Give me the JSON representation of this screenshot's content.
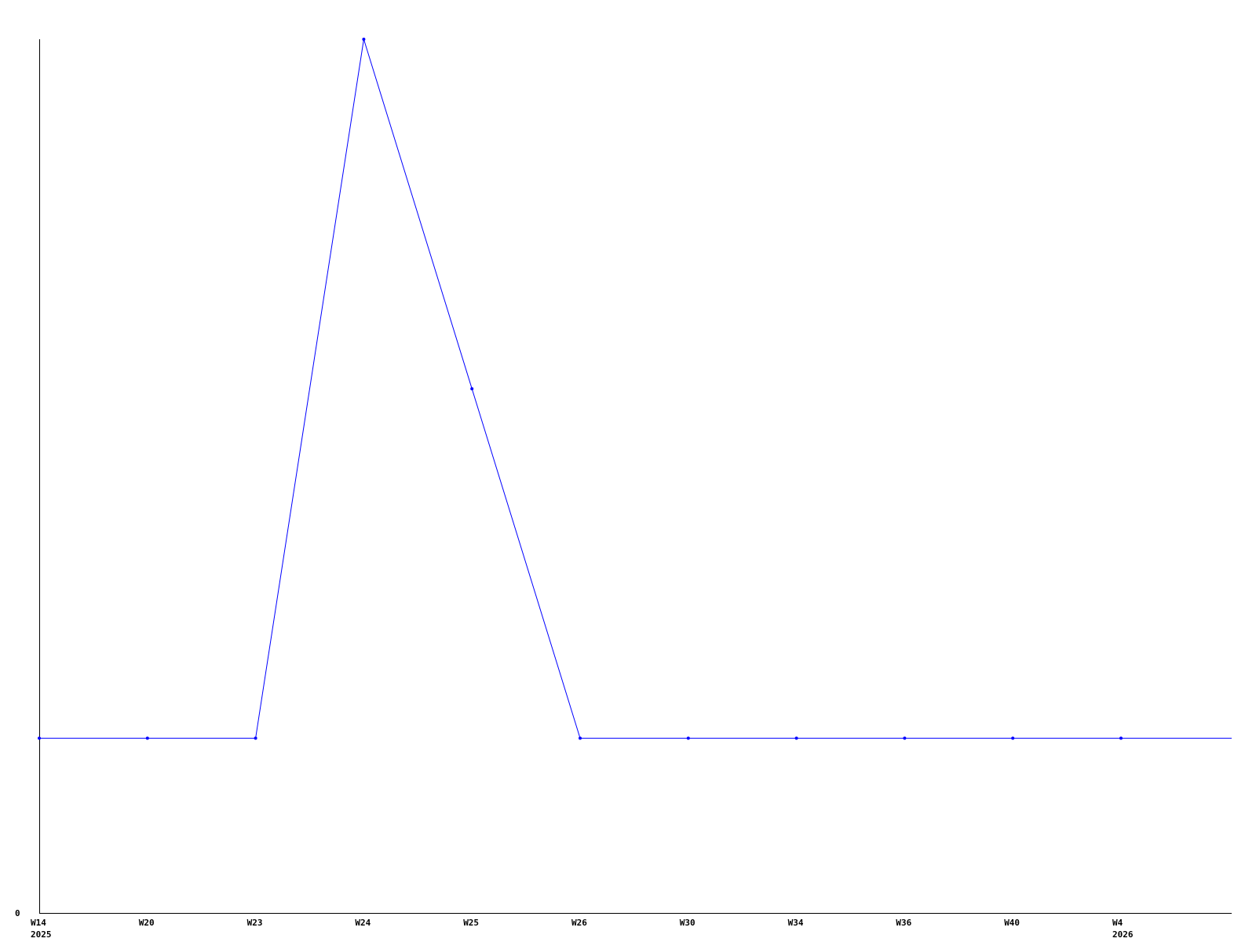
{
  "chart_data": {
    "type": "line",
    "title": "",
    "xlabel": "",
    "ylabel": "",
    "categories": [
      "W14",
      "W20",
      "W23",
      "W24",
      "W25",
      "W26",
      "W30",
      "W34",
      "W36",
      "W40",
      "W4"
    ],
    "year_labels": [
      {
        "category": "W14",
        "label": "2025"
      },
      {
        "category": "W4",
        "label": "2026"
      }
    ],
    "y_tick_labels": [
      "0"
    ],
    "series": [
      {
        "values": [
          1,
          1,
          1,
          5,
          3,
          1,
          1,
          1,
          1,
          1,
          1
        ],
        "color": "#0000ff"
      }
    ],
    "line_extends_past_last_point": true,
    "ylim": [
      0,
      5
    ],
    "grid": false,
    "axis_color": "#000000"
  }
}
